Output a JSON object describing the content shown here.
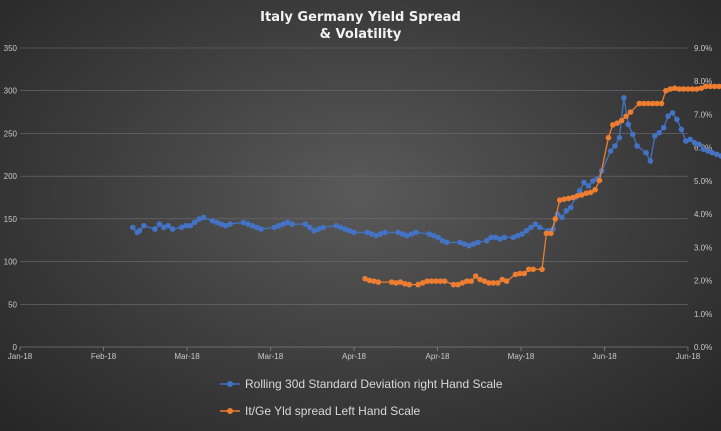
{
  "chart_data": {
    "type": "line",
    "title_line1": "Italy Germany Yield Spread",
    "title_line2": "& Volatility",
    "x_ticks": [
      "Jan-18",
      "Feb-18",
      "Mar-18",
      "Mar-18",
      "Apr-18",
      "Apr-18",
      "May-18",
      "Jun-18",
      "Jun-18"
    ],
    "y_left": {
      "min": 0,
      "max": 350,
      "step": 50,
      "ticks": [
        "0",
        "50",
        "100",
        "150",
        "200",
        "250",
        "300",
        "350"
      ]
    },
    "y_right": {
      "min": 0,
      "max": 9,
      "step": 1,
      "ticks": [
        "0.0%",
        "1.0%",
        "2.0%",
        "3.0%",
        "4.0%",
        "5.0%",
        "6.0%",
        "7.0%",
        "8.0%",
        "9.0%"
      ]
    },
    "grid": true,
    "legend_position": "bottom",
    "series": [
      {
        "name": "Rolling 30d Standard Deviation right Hand Scale",
        "axis": "right",
        "color": "#4472C4",
        "points": [
          [
            25.5,
            3.6
          ],
          [
            26.5,
            3.45
          ],
          [
            27,
            3.5
          ],
          [
            28,
            3.65
          ],
          [
            30.5,
            3.55
          ],
          [
            31.5,
            3.7
          ],
          [
            32.5,
            3.6
          ],
          [
            33.5,
            3.65
          ],
          [
            34.5,
            3.55
          ],
          [
            36.5,
            3.6
          ],
          [
            37.5,
            3.65
          ],
          [
            38.5,
            3.65
          ],
          [
            39.5,
            3.75
          ],
          [
            40.5,
            3.85
          ],
          [
            41.5,
            3.9
          ],
          [
            43.5,
            3.8
          ],
          [
            44.5,
            3.75
          ],
          [
            45.5,
            3.7
          ],
          [
            46.5,
            3.65
          ],
          [
            47.5,
            3.7
          ],
          [
            50.5,
            3.75
          ],
          [
            51.5,
            3.7
          ],
          [
            52.5,
            3.65
          ],
          [
            53.5,
            3.6
          ],
          [
            54.5,
            3.55
          ],
          [
            57.5,
            3.6
          ],
          [
            58.5,
            3.65
          ],
          [
            59.5,
            3.7
          ],
          [
            60.5,
            3.75
          ],
          [
            61.5,
            3.7
          ],
          [
            64.5,
            3.7
          ],
          [
            65.5,
            3.6
          ],
          [
            66.5,
            3.5
          ],
          [
            67.5,
            3.55
          ],
          [
            68.5,
            3.6
          ],
          [
            71.5,
            3.65
          ],
          [
            72.5,
            3.6
          ],
          [
            73.5,
            3.55
          ],
          [
            74.5,
            3.5
          ],
          [
            75.5,
            3.45
          ],
          [
            78.5,
            3.45
          ],
          [
            79.5,
            3.4
          ],
          [
            80.5,
            3.35
          ],
          [
            81.5,
            3.4
          ],
          [
            82.5,
            3.45
          ],
          [
            85.5,
            3.45
          ],
          [
            86.5,
            3.4
          ],
          [
            87.5,
            3.35
          ],
          [
            88.5,
            3.4
          ],
          [
            89.5,
            3.45
          ],
          [
            92.5,
            3.4
          ],
          [
            93.5,
            3.35
          ],
          [
            94.5,
            3.3
          ],
          [
            95.5,
            3.2
          ],
          [
            96.5,
            3.15
          ],
          [
            99.5,
            3.15
          ],
          [
            100.5,
            3.1
          ],
          [
            101.5,
            3.05
          ],
          [
            102.5,
            3.1
          ],
          [
            103.5,
            3.15
          ],
          [
            105.5,
            3.2
          ],
          [
            106.5,
            3.3
          ],
          [
            107.5,
            3.3
          ],
          [
            108.5,
            3.25
          ],
          [
            109.5,
            3.3
          ],
          [
            111.5,
            3.3
          ],
          [
            112.5,
            3.35
          ],
          [
            113.5,
            3.4
          ],
          [
            114.5,
            3.5
          ],
          [
            115.5,
            3.6
          ],
          [
            116.5,
            3.7
          ],
          [
            117.5,
            3.6
          ],
          [
            119.5,
            3.5
          ],
          [
            120.5,
            3.55
          ],
          [
            121.5,
            4.0
          ],
          [
            122.5,
            3.9
          ],
          [
            123.5,
            4.1
          ],
          [
            124.5,
            4.2
          ],
          [
            125.5,
            4.5
          ],
          [
            126.5,
            4.7
          ],
          [
            127.5,
            4.95
          ],
          [
            128.5,
            4.85
          ],
          [
            129.5,
            5.0
          ],
          [
            130.5,
            5.05
          ],
          [
            131.5,
            5.3
          ],
          [
            133.5,
            5.9
          ],
          [
            134.5,
            6.05
          ],
          [
            135.5,
            6.3
          ],
          [
            136.5,
            7.5
          ],
          [
            137.5,
            6.7
          ],
          [
            138.5,
            6.4
          ],
          [
            139.5,
            6.05
          ],
          [
            141.5,
            5.85
          ],
          [
            142.5,
            5.6
          ],
          [
            143.5,
            6.35
          ],
          [
            144.5,
            6.45
          ],
          [
            145.5,
            6.6
          ],
          [
            146.5,
            6.95
          ],
          [
            147.5,
            7.05
          ],
          [
            148.5,
            6.85
          ],
          [
            149.5,
            6.55
          ],
          [
            150.5,
            6.2
          ],
          [
            151.5,
            6.25
          ],
          [
            152.5,
            6.15
          ],
          [
            153.5,
            6.1
          ],
          [
            154.5,
            5.95
          ],
          [
            155.5,
            5.9
          ],
          [
            156.5,
            5.85
          ],
          [
            157.5,
            5.8
          ],
          [
            158.5,
            5.75
          ],
          [
            159.5,
            5.8
          ],
          [
            160.5,
            5.75
          ],
          [
            161.5,
            6.3
          ],
          [
            162.5,
            6.1
          ]
        ]
      },
      {
        "name": "It/Ge Yld spread Left Hand Scale",
        "axis": "left",
        "color": "#ED7D31",
        "points": [
          [
            78,
            80
          ],
          [
            79,
            78
          ],
          [
            80,
            77
          ],
          [
            81,
            76
          ],
          [
            84,
            76
          ],
          [
            85,
            75
          ],
          [
            86,
            76
          ],
          [
            87,
            74
          ],
          [
            88,
            73
          ],
          [
            90,
            73
          ],
          [
            91,
            75
          ],
          [
            92,
            77
          ],
          [
            93,
            77
          ],
          [
            94,
            77
          ],
          [
            95,
            77
          ],
          [
            96,
            77
          ],
          [
            98,
            73
          ],
          [
            99,
            73
          ],
          [
            100,
            75
          ],
          [
            101,
            77
          ],
          [
            102,
            77
          ],
          [
            103,
            83
          ],
          [
            104,
            79
          ],
          [
            105,
            77
          ],
          [
            106,
            75
          ],
          [
            107,
            75
          ],
          [
            108,
            75
          ],
          [
            109,
            79
          ],
          [
            110,
            77
          ],
          [
            112,
            85
          ],
          [
            113,
            86
          ],
          [
            114,
            86
          ],
          [
            115,
            91
          ],
          [
            116,
            91
          ],
          [
            118,
            91
          ],
          [
            119,
            133
          ],
          [
            120,
            133
          ],
          [
            121,
            150
          ],
          [
            122,
            172
          ],
          [
            123,
            173
          ],
          [
            124,
            174
          ],
          [
            125,
            175
          ],
          [
            126,
            177
          ],
          [
            127,
            178
          ],
          [
            128,
            180
          ],
          [
            129,
            181
          ],
          [
            130,
            184
          ],
          [
            131,
            195
          ],
          [
            133,
            245
          ],
          [
            134,
            260
          ],
          [
            135,
            262
          ],
          [
            136,
            265
          ],
          [
            137,
            270
          ],
          [
            138,
            275
          ],
          [
            140,
            285
          ],
          [
            141,
            285
          ],
          [
            142,
            285
          ],
          [
            143,
            285
          ],
          [
            144,
            285
          ],
          [
            145,
            285
          ],
          [
            146,
            300
          ],
          [
            147,
            302
          ],
          [
            148,
            303
          ],
          [
            149,
            302
          ],
          [
            150,
            302
          ],
          [
            151,
            302
          ],
          [
            152,
            302
          ],
          [
            153,
            302
          ],
          [
            154,
            303
          ],
          [
            155,
            305
          ],
          [
            156,
            305
          ],
          [
            157,
            305
          ],
          [
            158,
            305
          ],
          [
            159,
            306
          ],
          [
            160,
            308
          ],
          [
            161,
            309
          ],
          [
            162,
            309
          ]
        ]
      }
    ]
  }
}
